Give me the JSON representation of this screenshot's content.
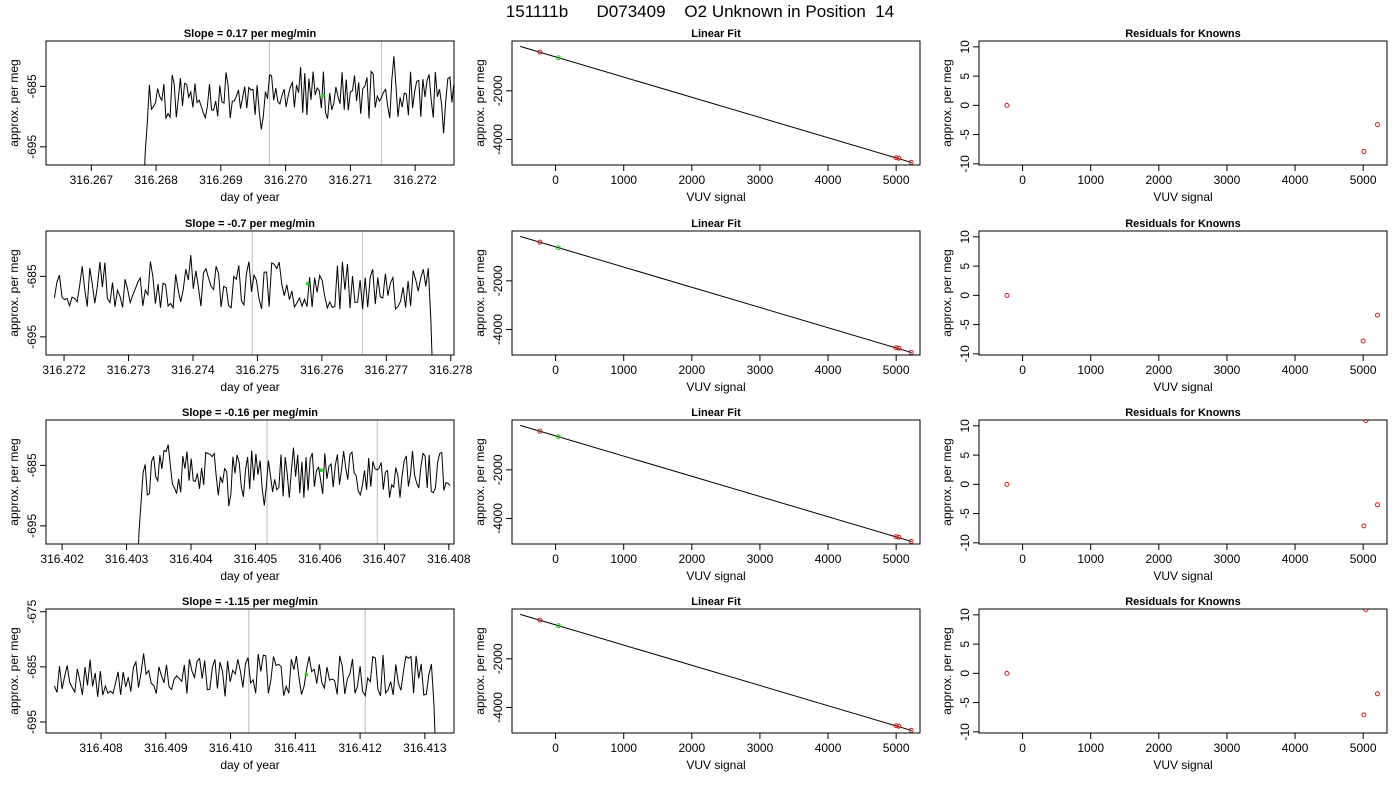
{
  "page": {
    "title": "151111b      D073409    O2 Unknown in Position  14"
  },
  "colors": {
    "trace": "#000000",
    "known_point": "#cc2222",
    "unknown_point": "#22cc22",
    "marker_line": "#c8c8c8",
    "fit_line": "#000000"
  },
  "chart_data": [
    {
      "type": "line",
      "title": "Slope =  0.17  per meg/min",
      "xlabel": "day of year",
      "ylabel": "approx. per meg",
      "xlim": [
        316.2663,
        316.2726
      ],
      "ylim": [
        -698,
        -677.5
      ],
      "xticks": [
        "316.267",
        "316.268",
        "316.269",
        "316.270",
        "316.271",
        "316.272"
      ],
      "yticks": [
        "-685",
        "-695"
      ],
      "xstart": 316.2678,
      "xend": 316.2726,
      "seed": 11,
      "vlines": [
        316.26975,
        316.27148
      ],
      "highlight": {
        "x": 316.27058,
        "y": -686.5
      }
    },
    {
      "type": "scatter",
      "title": "Linear Fit",
      "xlabel": "VUV signal",
      "ylabel": "approx. per meg",
      "xlim": [
        -640,
        5350
      ],
      "ylim": [
        -5050,
        50
      ],
      "xticks": [
        "0",
        "1000",
        "2000",
        "3000",
        "4000",
        "5000"
      ],
      "yticks": [
        "-2000",
        "-4000"
      ],
      "line": [
        [
          -520,
          -170
        ],
        [
          5230,
          -4950
        ]
      ],
      "known": [
        [
          -230,
          -410
        ],
        [
          5000,
          -4750
        ],
        [
          5040,
          -4770
        ],
        [
          5220,
          -4940
        ]
      ],
      "unknown": [
        [
          40,
          -640
        ]
      ]
    },
    {
      "type": "scatter",
      "title": "Residuals for Knowns",
      "xlabel": "VUV signal",
      "ylabel": "approx. per meg",
      "xlim": [
        -640,
        5350
      ],
      "ylim": [
        -10.2,
        11
      ],
      "xticks": [
        "0",
        "1000",
        "2000",
        "3000",
        "4000",
        "5000"
      ],
      "yticks": [
        "-10",
        "-5",
        "0",
        "5",
        "10"
      ],
      "known": [
        [
          -230,
          0
        ],
        [
          5010,
          -7.9
        ],
        [
          5210,
          -3.3
        ]
      ]
    },
    {
      "type": "line",
      "title": "Slope =  -0.7  per meg/min",
      "xlabel": "day of year",
      "ylabel": "approx. per meg",
      "xlim": [
        316.27172,
        316.27805
      ],
      "ylim": [
        -698,
        -677.5
      ],
      "xticks": [
        "316.272",
        "316.273",
        "316.274",
        "316.275",
        "316.276",
        "316.277",
        "316.278"
      ],
      "yticks": [
        "-685",
        "-695"
      ],
      "xstart": 316.27185,
      "xend": 316.27773,
      "seed": 23,
      "drop_end": true,
      "vlines": [
        316.27492,
        316.27663
      ],
      "highlight": {
        "x": 316.27578,
        "y": -686.2
      }
    },
    {
      "type": "scatter",
      "title": "Linear Fit",
      "xlabel": "VUV signal",
      "ylabel": "approx. per meg",
      "xlim": [
        -640,
        5350
      ],
      "ylim": [
        -5050,
        50
      ],
      "xticks": [
        "0",
        "1000",
        "2000",
        "3000",
        "4000",
        "5000"
      ],
      "yticks": [
        "-2000",
        "-4000"
      ],
      "line": [
        [
          -520,
          -170
        ],
        [
          5230,
          -4950
        ]
      ],
      "known": [
        [
          -230,
          -410
        ],
        [
          5000,
          -4750
        ],
        [
          5040,
          -4770
        ],
        [
          5220,
          -4940
        ]
      ],
      "unknown": [
        [
          40,
          -640
        ]
      ]
    },
    {
      "type": "scatter",
      "title": "Residuals for Knowns",
      "xlabel": "VUV signal",
      "ylabel": "approx. per meg",
      "xlim": [
        -640,
        5350
      ],
      "ylim": [
        -10.2,
        11
      ],
      "xticks": [
        "0",
        "1000",
        "2000",
        "3000",
        "4000",
        "5000"
      ],
      "yticks": [
        "-10",
        "-5",
        "0",
        "5",
        "10"
      ],
      "known": [
        [
          -230,
          0
        ],
        [
          5000,
          -7.8
        ],
        [
          5210,
          -3.4
        ]
      ]
    },
    {
      "type": "line",
      "title": "Slope =  -0.16  per meg/min",
      "xlabel": "day of year",
      "ylabel": "approx. per meg",
      "xlim": [
        316.40175,
        316.40808
      ],
      "ylim": [
        -698,
        -677.5
      ],
      "xticks": [
        "316.402",
        "316.403",
        "316.404",
        "316.405",
        "316.406",
        "316.407",
        "316.408"
      ],
      "yticks": [
        "-685",
        "-695"
      ],
      "xstart": 316.40316,
      "xend": 316.40802,
      "seed": 37,
      "vlines": [
        316.40518,
        316.40689
      ],
      "highlight": {
        "x": 316.40602,
        "y": -685.8
      }
    },
    {
      "type": "scatter",
      "title": "Linear Fit",
      "xlabel": "VUV signal",
      "ylabel": "approx. per meg",
      "xlim": [
        -640,
        5350
      ],
      "ylim": [
        -5050,
        50
      ],
      "xticks": [
        "0",
        "1000",
        "2000",
        "3000",
        "4000",
        "5000"
      ],
      "yticks": [
        "-2000",
        "-4000"
      ],
      "line": [
        [
          -520,
          -170
        ],
        [
          5230,
          -4950
        ]
      ],
      "known": [
        [
          -230,
          -410
        ],
        [
          5000,
          -4750
        ],
        [
          5040,
          -4770
        ],
        [
          5220,
          -4940
        ]
      ],
      "unknown": [
        [
          40,
          -640
        ]
      ]
    },
    {
      "type": "scatter",
      "title": "Residuals for Knowns",
      "xlabel": "VUV signal",
      "ylabel": "approx. per meg",
      "xlim": [
        -640,
        5350
      ],
      "ylim": [
        -10.2,
        11
      ],
      "xticks": [
        "0",
        "1000",
        "2000",
        "3000",
        "4000",
        "5000"
      ],
      "yticks": [
        "-10",
        "-5",
        "0",
        "5",
        "10"
      ],
      "known": [
        [
          -230,
          0
        ],
        [
          5010,
          -7.1
        ],
        [
          5210,
          -3.5
        ],
        [
          5040,
          10.9
        ]
      ]
    },
    {
      "type": "line",
      "title": "Slope =  -1.15  per meg/min",
      "xlabel": "day of year",
      "ylabel": "approx. per meg",
      "xlim": [
        316.40715,
        316.41345
      ],
      "ylim": [
        -697,
        -674.5
      ],
      "xticks": [
        "316.408",
        "316.409",
        "316.410",
        "316.411",
        "316.412",
        "316.413"
      ],
      "yticks": [
        "-675",
        "-685",
        "-695"
      ],
      "xstart": 316.40728,
      "xend": 316.41318,
      "seed": 53,
      "drop_end": true,
      "vlines": [
        316.41028,
        316.41208
      ],
      "highlight": {
        "x": 316.41117,
        "y": -686.4
      }
    },
    {
      "type": "scatter",
      "title": "Linear Fit",
      "xlabel": "VUV signal",
      "ylabel": "approx. per meg",
      "xlim": [
        -640,
        5350
      ],
      "ylim": [
        -5050,
        50
      ],
      "xticks": [
        "0",
        "1000",
        "2000",
        "3000",
        "4000",
        "5000"
      ],
      "yticks": [
        "-2000",
        "-4000"
      ],
      "line": [
        [
          -520,
          -170
        ],
        [
          5230,
          -4950
        ]
      ],
      "known": [
        [
          -230,
          -410
        ],
        [
          5000,
          -4750
        ],
        [
          5040,
          -4770
        ],
        [
          5220,
          -4940
        ]
      ],
      "unknown": [
        [
          40,
          -640
        ]
      ]
    },
    {
      "type": "scatter",
      "title": "Residuals for Knowns",
      "xlabel": "VUV signal",
      "ylabel": "approx. per meg",
      "xlim": [
        -640,
        5350
      ],
      "ylim": [
        -10.2,
        11
      ],
      "xticks": [
        "0",
        "1000",
        "2000",
        "3000",
        "4000",
        "5000"
      ],
      "yticks": [
        "-10",
        "-5",
        "0",
        "5",
        "10"
      ],
      "known": [
        [
          -230,
          0
        ],
        [
          5010,
          -7.1
        ],
        [
          5210,
          -3.5
        ],
        [
          5040,
          10.9
        ]
      ]
    }
  ]
}
